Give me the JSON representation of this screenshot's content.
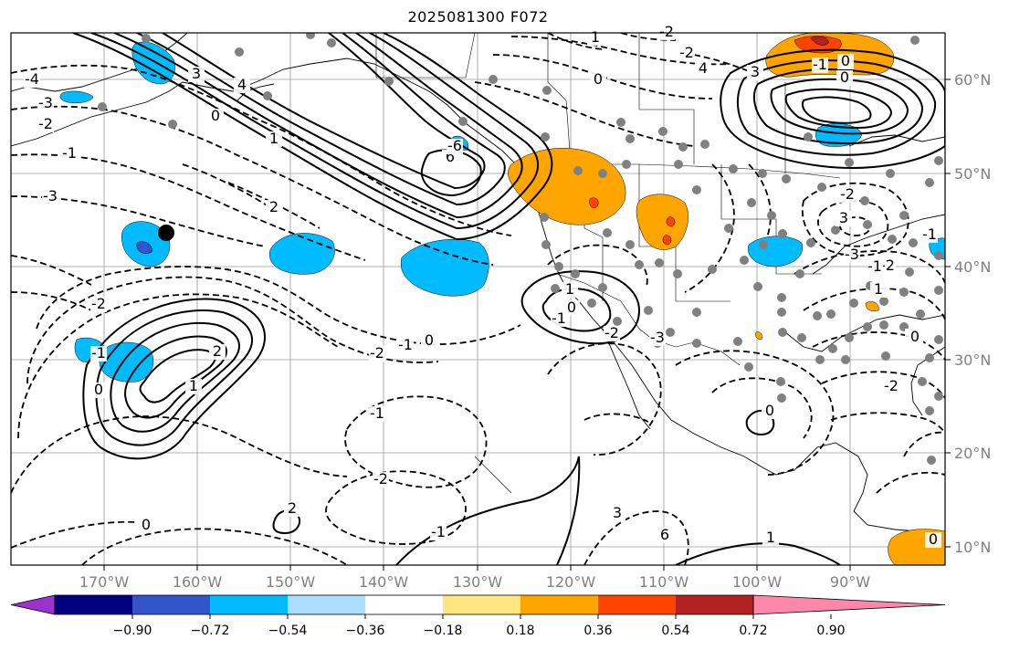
{
  "title": "2025081300 F072",
  "map": {
    "latitude_labels": [
      "60°N",
      "50°N",
      "40°N",
      "30°N",
      "20°N",
      "10°N"
    ],
    "longitude_labels": [
      "170°W",
      "160°W",
      "150°W",
      "140°W",
      "130°W",
      "120°W",
      "110°W",
      "100°W",
      "90°W"
    ]
  },
  "colorbar": {
    "colors": [
      "#9933cc",
      "#000080",
      "#3355cc",
      "#00bbff",
      "#aaddff",
      "#ffffff",
      "#ffe680",
      "#ffa500",
      "#ff4400",
      "#b22222",
      "#ff88aa"
    ],
    "tick_labels": [
      "−0.90",
      "−0.72",
      "−0.54",
      "−0.36",
      "−0.18",
      "0.18",
      "0.36",
      "0.54",
      "0.72",
      "0.90"
    ]
  },
  "contour_labels": [
    "-4",
    "-3",
    "-2",
    "-1",
    "0",
    "1",
    "2",
    "3",
    "4",
    "6",
    "-6",
    "-3",
    "-2",
    "-1",
    "0",
    "1",
    "2",
    "-2",
    "-1",
    "0",
    "-1",
    "0",
    "2",
    "-2",
    "-1",
    "1",
    "0",
    "-1",
    "-2",
    "-3",
    "-2",
    "-2",
    "1",
    "0",
    "3",
    "-2",
    "-1",
    "-2",
    "-3",
    "-2",
    "-1",
    "0",
    "1",
    "3",
    "6",
    "4",
    "3",
    "-1",
    "0",
    "0",
    "0",
    "1",
    "0",
    "-1"
  ]
}
